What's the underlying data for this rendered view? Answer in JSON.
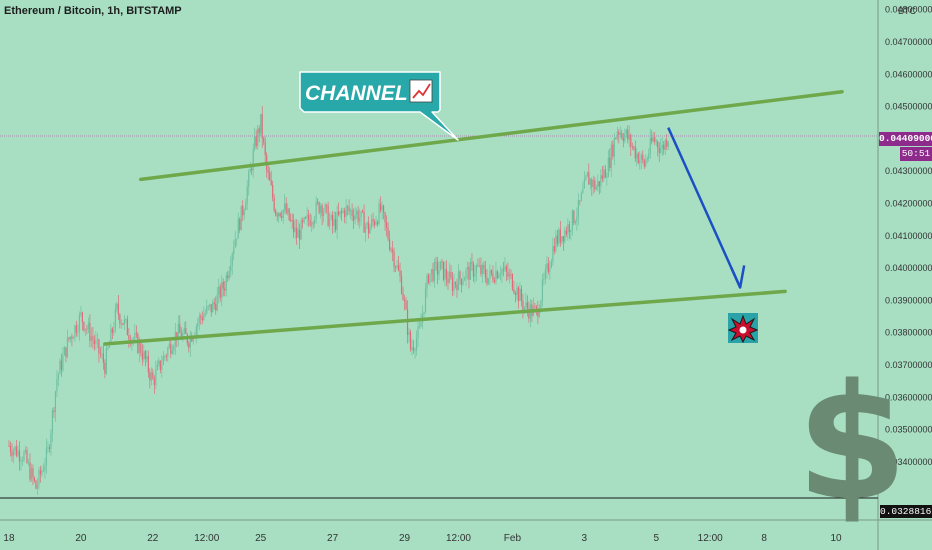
{
  "title": "Ethereum / Bitcoin, 1h, BITSTAMP",
  "unit": "BTC",
  "callout": "CHANNEL",
  "price_badge": "0.04409000",
  "timer_badge": "50:51",
  "low_badge": "0.03288166",
  "colors": {
    "background": "#a8dfc3",
    "channel": "#6ea84a",
    "arrow": "#1c4fc4",
    "callout": "#28a8a8",
    "dollar": "#6a8a74",
    "badge": "#8e2a8c"
  },
  "chart_data": {
    "type": "candlestick",
    "y_ticks": [
      {
        "value": 0.048,
        "label": "0.04800000"
      },
      {
        "value": 0.047,
        "label": "0.04700000"
      },
      {
        "value": 0.046,
        "label": "0.04600000"
      },
      {
        "value": 0.045,
        "label": "0.04500000"
      },
      {
        "value": 0.043,
        "label": "0.04300000"
      },
      {
        "value": 0.042,
        "label": "0.04200000"
      },
      {
        "value": 0.041,
        "label": "0.04100000"
      },
      {
        "value": 0.04,
        "label": "0.04000000"
      },
      {
        "value": 0.039,
        "label": "0.03900000"
      },
      {
        "value": 0.038,
        "label": "0.03800000"
      },
      {
        "value": 0.037,
        "label": "0.03700000"
      },
      {
        "value": 0.036,
        "label": "0.03600000"
      },
      {
        "value": 0.035,
        "label": "0.03500000"
      },
      {
        "value": 0.034,
        "label": "0.03400000"
      }
    ],
    "x_ticks": [
      {
        "label": "18",
        "hours": 0
      },
      {
        "label": "20",
        "hours": 48
      },
      {
        "label": "22",
        "hours": 96
      },
      {
        "label": "12:00",
        "hours": 132
      },
      {
        "label": "25",
        "hours": 168
      },
      {
        "label": "27",
        "hours": 216
      },
      {
        "label": "29",
        "hours": 264
      },
      {
        "label": "12:00",
        "hours": 300
      },
      {
        "label": "Feb",
        "hours": 336
      },
      {
        "label": "3",
        "hours": 384
      },
      {
        "label": "5",
        "hours": 432
      },
      {
        "label": "12:00",
        "hours": 468
      },
      {
        "label": "8",
        "hours": 504
      },
      {
        "label": "10",
        "hours": 552
      }
    ],
    "ylim": [
      0.0322,
      0.0483
    ],
    "xlim": [
      -6,
      580
    ],
    "current_price": 0.04409,
    "session_low": 0.03288166,
    "path": [
      [
        0,
        0.0345
      ],
      [
        10,
        0.0342
      ],
      [
        18,
        0.0332
      ],
      [
        26,
        0.0343
      ],
      [
        32,
        0.0366
      ],
      [
        40,
        0.0378
      ],
      [
        48,
        0.0385
      ],
      [
        56,
        0.0378
      ],
      [
        64,
        0.037
      ],
      [
        72,
        0.0387
      ],
      [
        80,
        0.038
      ],
      [
        88,
        0.0375
      ],
      [
        96,
        0.0365
      ],
      [
        104,
        0.0373
      ],
      [
        112,
        0.038
      ],
      [
        120,
        0.0378
      ],
      [
        128,
        0.0385
      ],
      [
        136,
        0.0388
      ],
      [
        144,
        0.0395
      ],
      [
        150,
        0.0408
      ],
      [
        156,
        0.0418
      ],
      [
        160,
        0.0427
      ],
      [
        164,
        0.0438
      ],
      [
        168,
        0.0445
      ],
      [
        172,
        0.043
      ],
      [
        178,
        0.0418
      ],
      [
        184,
        0.0418
      ],
      [
        192,
        0.041
      ],
      [
        200,
        0.0415
      ],
      [
        208,
        0.042
      ],
      [
        216,
        0.0413
      ],
      [
        224,
        0.0418
      ],
      [
        232,
        0.0417
      ],
      [
        240,
        0.0412
      ],
      [
        248,
        0.0418
      ],
      [
        256,
        0.0405
      ],
      [
        262,
        0.0395
      ],
      [
        268,
        0.0375
      ],
      [
        274,
        0.038
      ],
      [
        280,
        0.0398
      ],
      [
        288,
        0.04
      ],
      [
        296,
        0.0395
      ],
      [
        304,
        0.0398
      ],
      [
        312,
        0.04
      ],
      [
        320,
        0.0397
      ],
      [
        328,
        0.04
      ],
      [
        336,
        0.0396
      ],
      [
        344,
        0.0388
      ],
      [
        352,
        0.0386
      ],
      [
        358,
        0.0397
      ],
      [
        364,
        0.0408
      ],
      [
        372,
        0.0412
      ],
      [
        380,
        0.0418
      ],
      [
        386,
        0.0428
      ],
      [
        392,
        0.0425
      ],
      [
        400,
        0.0432
      ],
      [
        406,
        0.0443
      ],
      [
        412,
        0.0441
      ],
      [
        418,
        0.0436
      ],
      [
        424,
        0.0432
      ],
      [
        430,
        0.044
      ],
      [
        436,
        0.0437
      ],
      [
        440,
        0.0441
      ]
    ],
    "channel_upper": [
      [
        -6,
        0.0422
      ],
      [
        580,
        0.0456
      ]
    ],
    "channel_lower": [
      [
        -6,
        0.0374
      ],
      [
        580,
        0.0395
      ]
    ],
    "forecast_arrow": [
      [
        440,
        0.04435
      ],
      [
        488,
        0.0394
      ]
    ]
  }
}
